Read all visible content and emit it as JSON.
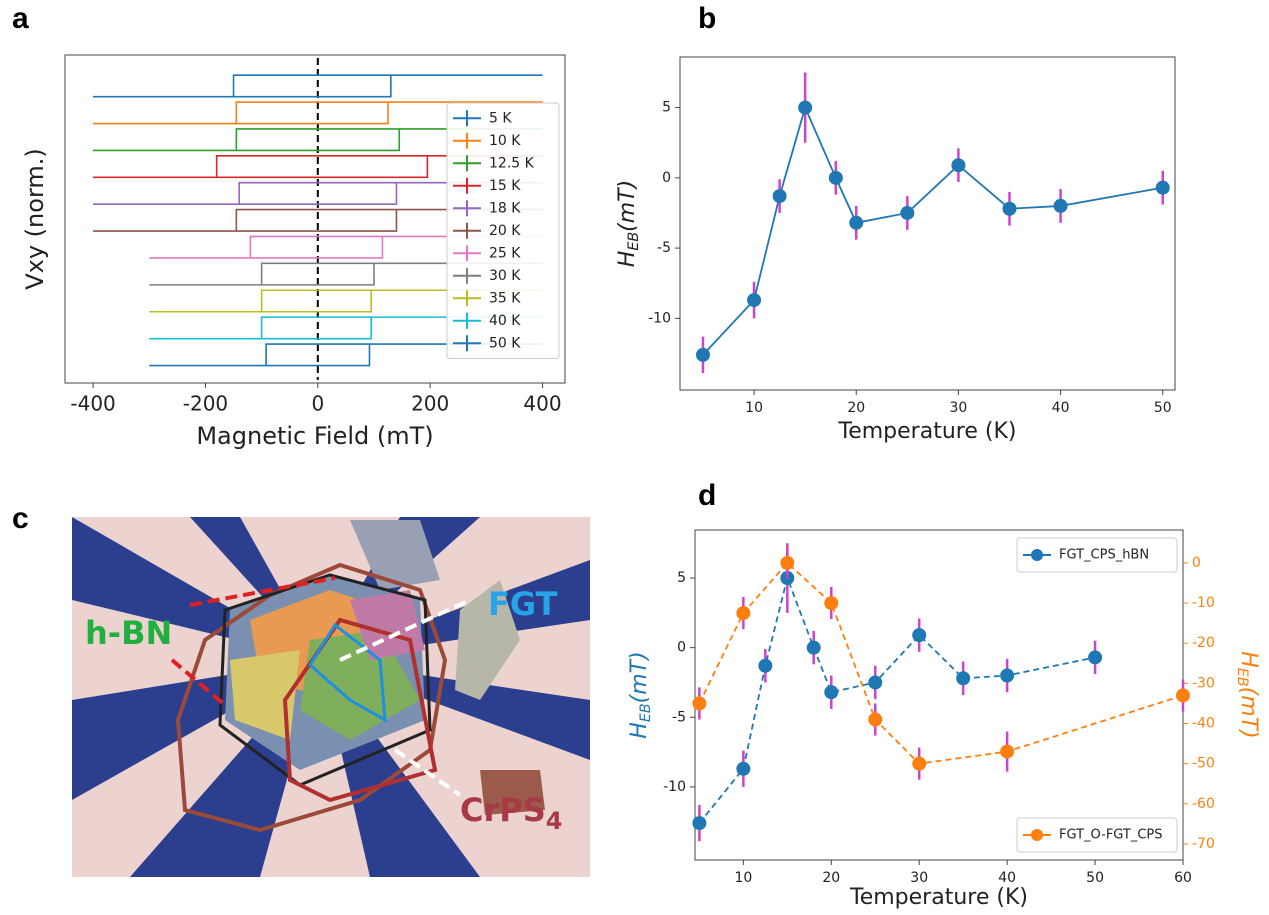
{
  "chart_data": [
    {
      "panel_label": "a",
      "type": "line",
      "x_label": "Magnetic Field (mT)",
      "y_label": "Vxy (norm.)",
      "xlim": [
        -450,
        440
      ],
      "ylim": [
        -11.05,
        1.15
      ],
      "xticks": [
        -400,
        -200,
        0,
        200,
        400
      ],
      "vline": 0,
      "legend_position": "upper right",
      "series": [
        {
          "name": "5 K",
          "color": "#1f77b4",
          "x": [
            -400,
            130,
            130,
            400,
            -150,
            -150,
            -400
          ],
          "values": [
            -0.4,
            -0.4,
            0.4,
            0.4,
            0.4,
            -0.4,
            -0.4
          ]
        },
        {
          "name": "10 K",
          "color": "#ff7f0e",
          "x": [
            -400,
            125,
            125,
            400,
            -145,
            -145,
            -400
          ],
          "values": [
            -1.4,
            -1.4,
            -0.6,
            -0.6,
            -0.6,
            -1.4,
            -1.4
          ]
        },
        {
          "name": "12.5 K",
          "color": "#2ca02c",
          "x": [
            -400,
            145,
            145,
            400,
            -145,
            -145,
            -400
          ],
          "values": [
            -2.4,
            -2.4,
            -1.6,
            -1.6,
            -1.6,
            -2.4,
            -2.4
          ]
        },
        {
          "name": "15 K",
          "color": "#d62728",
          "x": [
            -400,
            195,
            195,
            400,
            -180,
            -180,
            -400
          ],
          "values": [
            -3.4,
            -3.4,
            -2.6,
            -2.6,
            -2.6,
            -3.4,
            -3.4
          ]
        },
        {
          "name": "18 K",
          "color": "#9467bd",
          "x": [
            -400,
            140,
            140,
            400,
            -140,
            -140,
            -400
          ],
          "values": [
            -4.4,
            -4.4,
            -3.6,
            -3.6,
            -3.6,
            -4.4,
            -4.4
          ]
        },
        {
          "name": "20 K",
          "color": "#8c564b",
          "x": [
            -400,
            140,
            140,
            400,
            -145,
            -145,
            -400
          ],
          "values": [
            -5.4,
            -5.4,
            -4.6,
            -4.6,
            -4.6,
            -5.4,
            -5.4
          ]
        },
        {
          "name": "25 K",
          "color": "#e377c2",
          "x": [
            -300,
            115,
            115,
            400,
            -120,
            -120,
            -300
          ],
          "values": [
            -6.4,
            -6.4,
            -5.6,
            -5.6,
            -5.6,
            -6.4,
            -6.4
          ]
        },
        {
          "name": "30 K",
          "color": "#7f7f7f",
          "x": [
            -300,
            100,
            100,
            400,
            -100,
            -100,
            -300
          ],
          "values": [
            -7.4,
            -7.4,
            -6.6,
            -6.6,
            -6.6,
            -7.4,
            -7.4
          ]
        },
        {
          "name": "35 K",
          "color": "#bcbd22",
          "x": [
            -300,
            95,
            95,
            400,
            -100,
            -100,
            -300
          ],
          "values": [
            -8.4,
            -8.4,
            -7.6,
            -7.6,
            -7.6,
            -8.4,
            -8.4
          ]
        },
        {
          "name": "40 K",
          "color": "#17becf",
          "x": [
            -300,
            95,
            95,
            400,
            -100,
            -100,
            -300
          ],
          "values": [
            -9.4,
            -9.4,
            -8.6,
            -8.6,
            -8.6,
            -9.4,
            -9.4
          ]
        },
        {
          "name": "50 K",
          "color": "#1f77b4",
          "x": [
            -300,
            92,
            92,
            400,
            -92,
            -92,
            -300
          ],
          "values": [
            -10.4,
            -10.4,
            -9.6,
            -9.6,
            -9.6,
            -10.4,
            -10.4
          ]
        }
      ]
    },
    {
      "panel_label": "b",
      "type": "errorbar",
      "x_label": "Temperature (K)",
      "y_label": {
        "text": "H",
        "subscript": "EB",
        "suffix": "(mT)"
      },
      "xlim": [
        2.75,
        51.2
      ],
      "ylim": [
        -15.1,
        8.6
      ],
      "xticks": [
        10,
        20,
        30,
        40,
        50
      ],
      "yticks": [
        -10,
        -5,
        0,
        5
      ],
      "series": [
        {
          "color": "#1f77b4",
          "error_color": "#cc44cc",
          "linestyle": "solid",
          "x": [
            5,
            10,
            12.5,
            15,
            18,
            20,
            25,
            30,
            35,
            40,
            50
          ],
          "values": [
            -12.6,
            -8.7,
            -1.3,
            5,
            0,
            -3.2,
            -2.5,
            0.9,
            -2.2,
            -2,
            -0.7
          ],
          "errors": [
            1.3,
            1.3,
            1.2,
            2.5,
            1.2,
            1.2,
            1.2,
            1.2,
            1.2,
            1.2,
            1.2
          ]
        }
      ]
    },
    {
      "panel_label": "d",
      "type": "errorbar",
      "x_label": "Temperature (K)",
      "y_label": {
        "text": "H",
        "subscript": "EB",
        "suffix": "(mT)",
        "color": "#1f77b4"
      },
      "y2_label": {
        "text": "H",
        "subscript": "EB",
        "suffix": "(mT)",
        "color": "#ff7f0e"
      },
      "xlim": [
        4.5,
        60
      ],
      "ylim": [
        -15.25,
        8.45
      ],
      "y2lim": [
        -74,
        8.2
      ],
      "xticks": [
        10,
        20,
        30,
        40,
        50,
        60
      ],
      "yticks": [
        -10,
        -5,
        0,
        5
      ],
      "y2ticks": [
        0,
        -10,
        -20,
        -30,
        -40,
        -50,
        -60,
        -70
      ],
      "y2tick_color": "#ff7f0e",
      "series": [
        {
          "name": "FGT_CPS_hBN",
          "color": "#1f77b4",
          "error_color": "#cc44cc",
          "linestyle": "dashed",
          "legend_position": "upper right",
          "x": [
            5,
            10,
            12.5,
            15,
            18,
            20,
            25,
            30,
            35,
            40,
            50
          ],
          "values": [
            -12.6,
            -8.7,
            -1.3,
            5,
            0,
            -3.2,
            -2.5,
            0.9,
            -2.2,
            -2,
            -0.7
          ],
          "errors": [
            1.3,
            1.3,
            1.2,
            2.5,
            1.2,
            1.2,
            1.2,
            1.2,
            1.2,
            1.2,
            1.2
          ]
        },
        {
          "name": "FGT_O-FGT_CPS",
          "color": "#ff7f0e",
          "error_color": "#cc44cc",
          "linestyle": "dashed",
          "legend_position": "lower right",
          "axis": "y2",
          "x": [
            5,
            10,
            15,
            20,
            25,
            30,
            40,
            60
          ],
          "values": [
            -35,
            -12.5,
            0,
            -10,
            -39,
            -50,
            -47,
            -33
          ],
          "errors": [
            4,
            4,
            4,
            4,
            4,
            4,
            5,
            4
          ]
        }
      ]
    }
  ],
  "micrograph": {
    "panel_label": "c",
    "hbn_label": "h-BN",
    "fgt_label": "FGT",
    "crps_label": "CrPS",
    "crps_subscript": "4"
  }
}
